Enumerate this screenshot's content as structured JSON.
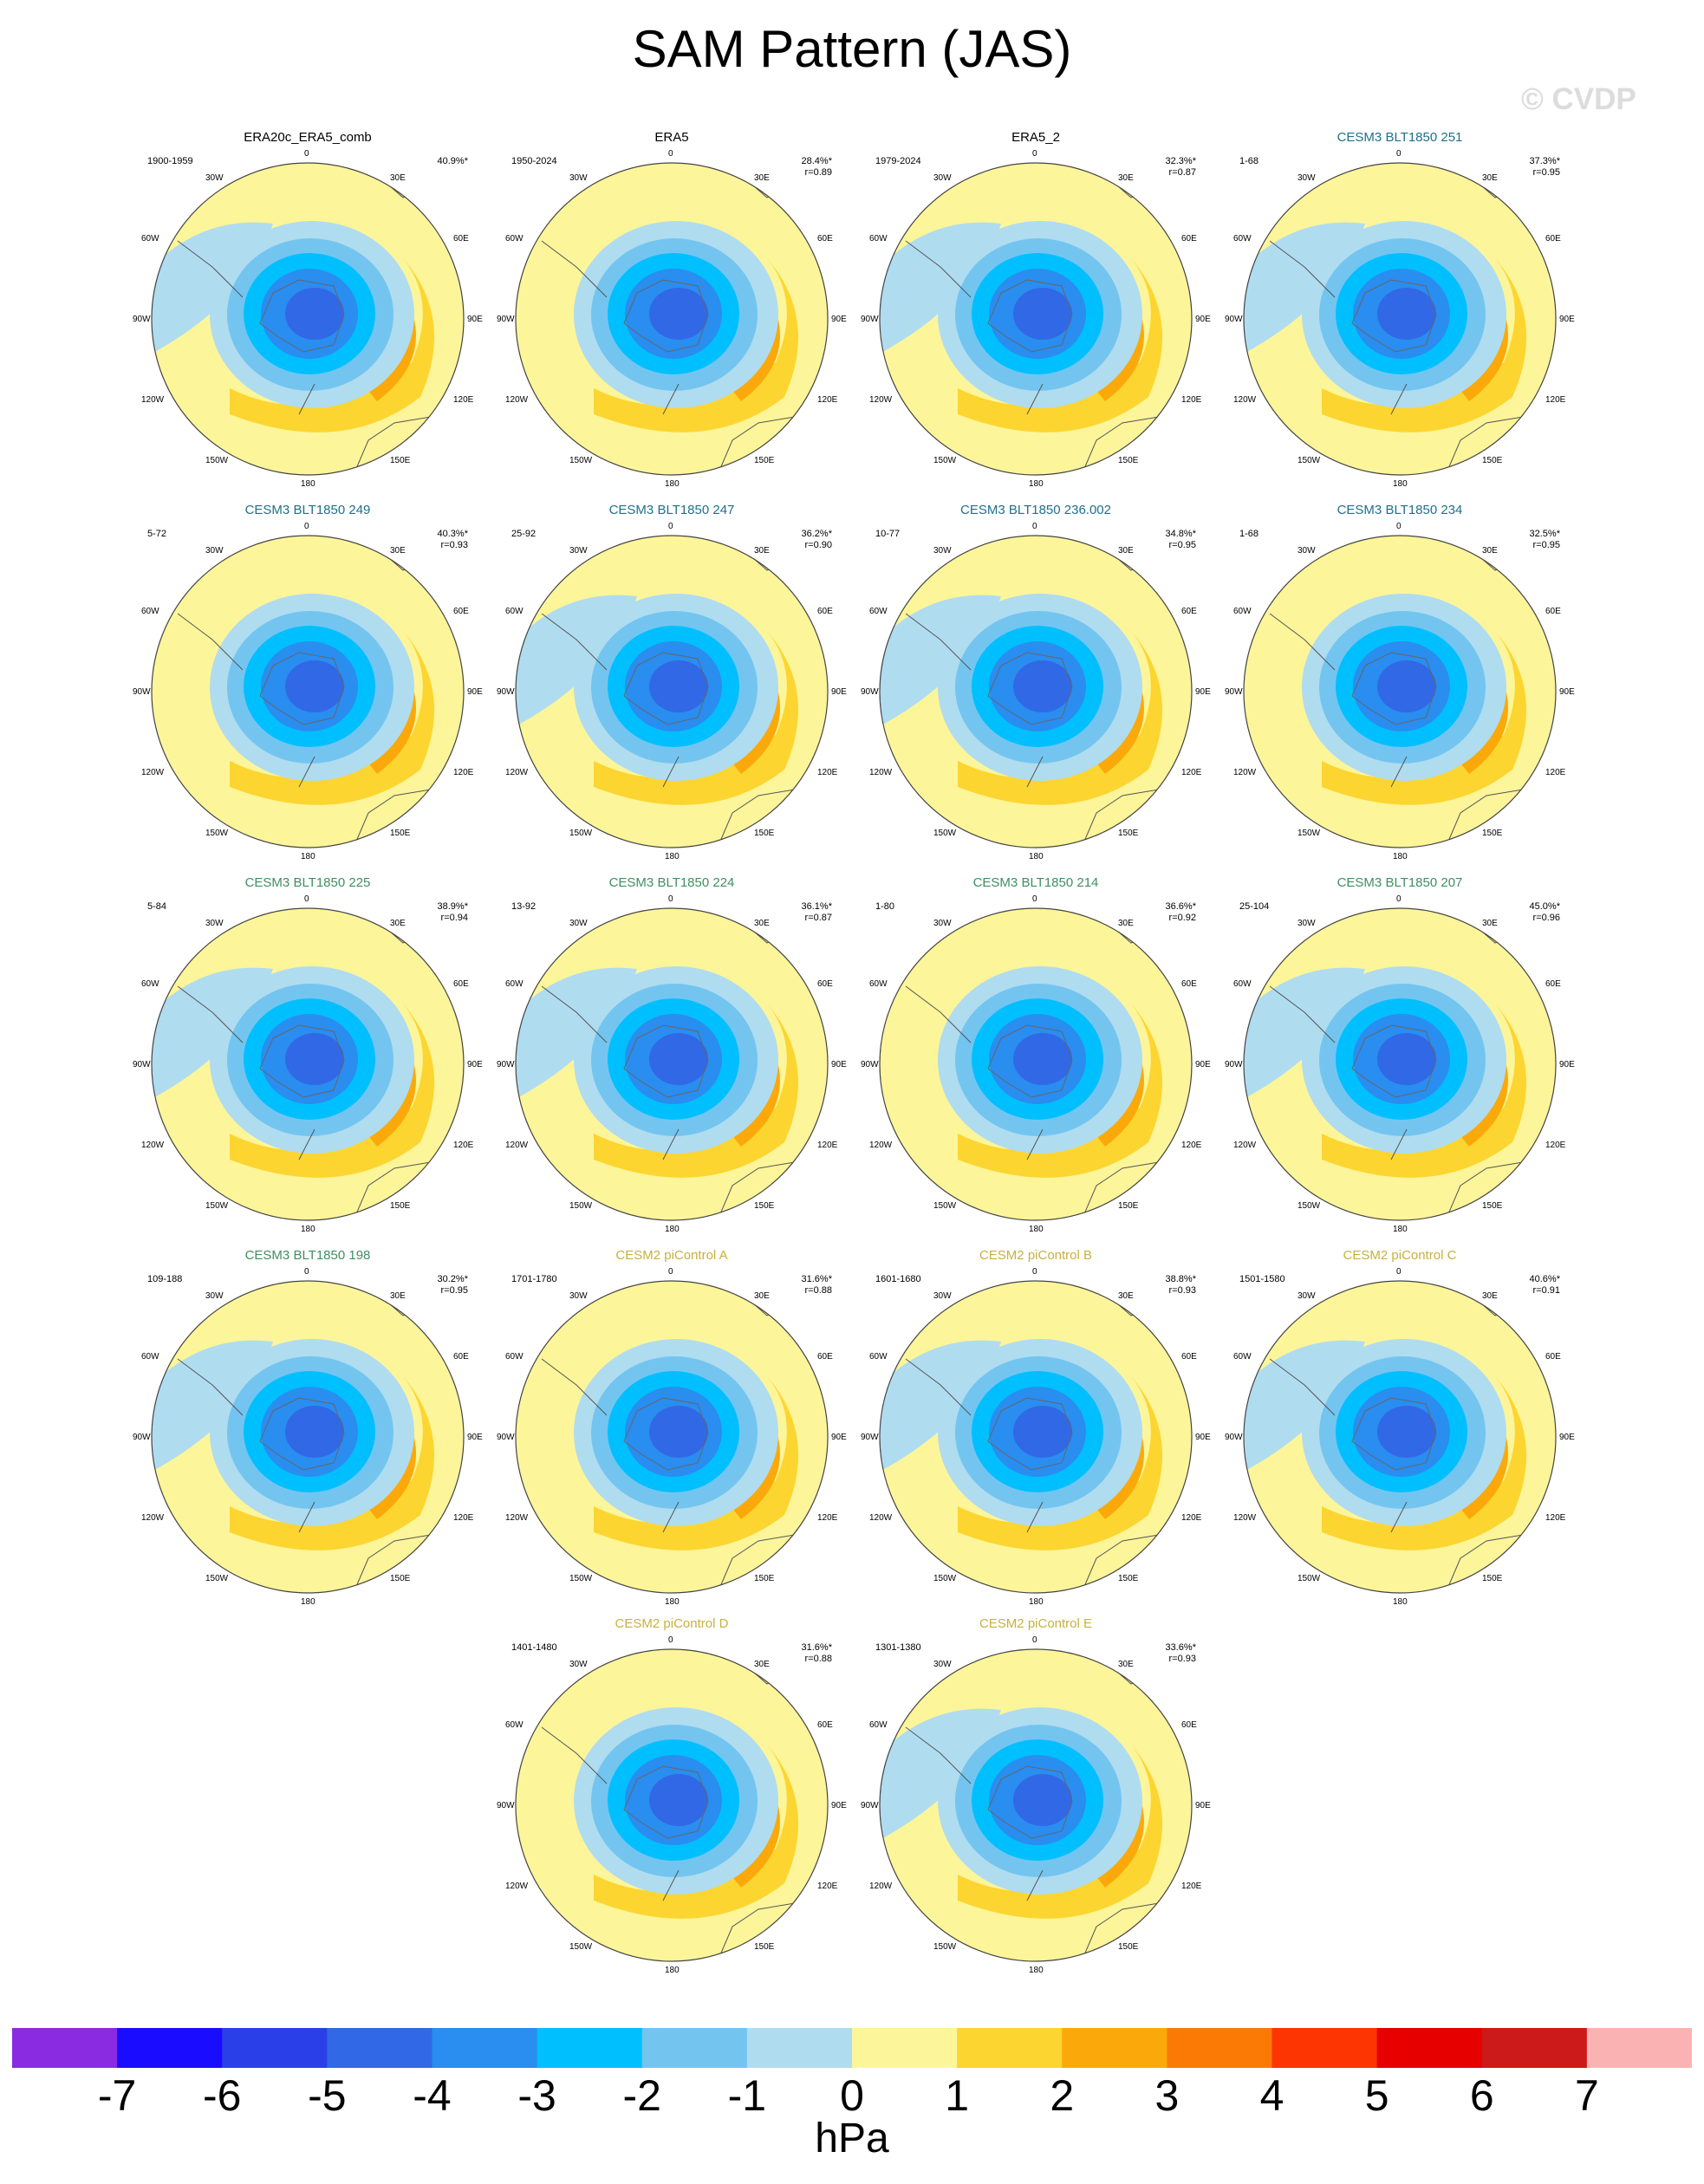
{
  "title": "SAM Pattern (JAS)",
  "watermark": "© CVDP",
  "map_labels": {
    "top": "0",
    "bottom": "180",
    "left_top": "60W",
    "left_mid": "90W",
    "left_bot": "120W",
    "right_top": "60E",
    "right_mid": "90E",
    "right_bot": "120E",
    "tl": "30W",
    "tr": "30E",
    "bl": "150W",
    "br": "150E"
  },
  "colors": {
    "obs_title": "#000000",
    "cesm3_251_234": "#1f6f8b",
    "cesm3_225_198": "#3f8f5f",
    "cesm2": "#c8b040"
  },
  "panels": [
    {
      "title": "ERA20c_ERA5_comb",
      "period": "1900-1959",
      "pct": "40.9%*",
      "r": "",
      "group": "obs"
    },
    {
      "title": "ERA5",
      "period": "1950-2024",
      "pct": "28.4%*",
      "r": "r=0.89",
      "group": "obs"
    },
    {
      "title": "ERA5_2",
      "period": "1979-2024",
      "pct": "32.3%*",
      "r": "r=0.87",
      "group": "obs"
    },
    {
      "title": "CESM3 BLT1850 251",
      "period": "1-68",
      "pct": "37.3%*",
      "r": "r=0.95",
      "group": "cesm3a"
    },
    {
      "title": "CESM3 BLT1850 249",
      "period": "5-72",
      "pct": "40.3%*",
      "r": "r=0.93",
      "group": "cesm3a"
    },
    {
      "title": "CESM3 BLT1850 247",
      "period": "25-92",
      "pct": "36.2%*",
      "r": "r=0.90",
      "group": "cesm3a"
    },
    {
      "title": "CESM3 BLT1850 236.002",
      "period": "10-77",
      "pct": "34.8%*",
      "r": "r=0.95",
      "group": "cesm3a"
    },
    {
      "title": "CESM3 BLT1850 234",
      "period": "1-68",
      "pct": "32.5%*",
      "r": "r=0.95",
      "group": "cesm3a"
    },
    {
      "title": "CESM3 BLT1850 225",
      "period": "5-84",
      "pct": "38.9%*",
      "r": "r=0.94",
      "group": "cesm3b"
    },
    {
      "title": "CESM3 BLT1850 224",
      "period": "13-92",
      "pct": "36.1%*",
      "r": "r=0.87",
      "group": "cesm3b"
    },
    {
      "title": "CESM3 BLT1850 214",
      "period": "1-80",
      "pct": "36.6%*",
      "r": "r=0.92",
      "group": "cesm3b"
    },
    {
      "title": "CESM3 BLT1850 207",
      "period": "25-104",
      "pct": "45.0%*",
      "r": "r=0.96",
      "group": "cesm3b"
    },
    {
      "title": "CESM3 BLT1850 198",
      "period": "109-188",
      "pct": "30.2%*",
      "r": "r=0.95",
      "group": "cesm3b"
    },
    {
      "title": "CESM2 piControl A",
      "period": "1701-1780",
      "pct": "31.6%*",
      "r": "r=0.88",
      "group": "cesm2"
    },
    {
      "title": "CESM2 piControl B",
      "period": "1601-1680",
      "pct": "38.8%*",
      "r": "r=0.93",
      "group": "cesm2"
    },
    {
      "title": "CESM2 piControl C",
      "period": "1501-1580",
      "pct": "40.6%*",
      "r": "r=0.91",
      "group": "cesm2"
    },
    {
      "title": "CESM2 piControl D",
      "period": "1401-1480",
      "pct": "31.6%*",
      "r": "r=0.88",
      "group": "cesm2"
    },
    {
      "title": "CESM2 piControl E",
      "period": "1301-1380",
      "pct": "33.6%*",
      "r": "r=0.93",
      "group": "cesm2"
    }
  ],
  "chart_data": {
    "type": "heatmap",
    "title": "SAM Pattern (JAS)",
    "projection": "south polar stereographic",
    "colorbar": {
      "ticks": [
        "-7",
        "-6",
        "-5",
        "-4",
        "-3",
        "-2",
        "-1",
        "0",
        "1",
        "2",
        "3",
        "4",
        "5",
        "6",
        "7"
      ],
      "units": "hPa",
      "colors": [
        "#8a2be2",
        "#1a0dff",
        "#2a3fe8",
        "#3168e6",
        "#2a8df0",
        "#00bfff",
        "#73c5f0",
        "#b0dcf0",
        "#fdf59a",
        "#fcd530",
        "#fba90a",
        "#fb7a06",
        "#fc3502",
        "#e60000",
        "#cc1a1a",
        "#fbb2b2"
      ]
    }
  }
}
